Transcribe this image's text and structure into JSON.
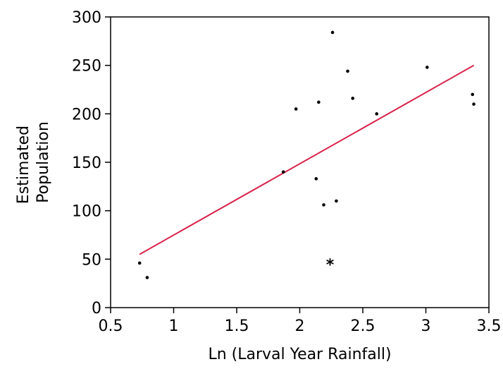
{
  "chart_data": {
    "type": "scatter",
    "title": "",
    "xlabel": "Ln (Larval Year Rainfall)",
    "ylabel_lines": [
      "Estimated",
      "Population"
    ],
    "xlim": [
      0.5,
      3.5
    ],
    "ylim": [
      0,
      300
    ],
    "xticks": [
      0.5,
      1,
      1.5,
      2,
      2.5,
      3,
      3.5
    ],
    "xtick_labels": [
      "0.5",
      "1",
      "1.5",
      "2",
      "2.5",
      "3",
      "3.5"
    ],
    "yticks": [
      0,
      50,
      100,
      150,
      200,
      250,
      300
    ],
    "ytick_labels": [
      "0",
      "50",
      "100",
      "150",
      "200",
      "250",
      "300"
    ],
    "grid": false,
    "series": [
      {
        "points": [
          {
            "x": 0.73,
            "y": 46
          },
          {
            "x": 0.79,
            "y": 31
          },
          {
            "x": 1.87,
            "y": 140
          },
          {
            "x": 1.97,
            "y": 205
          },
          {
            "x": 2.13,
            "y": 133
          },
          {
            "x": 2.15,
            "y": 212
          },
          {
            "x": 2.19,
            "y": 106
          },
          {
            "x": 2.26,
            "y": 284
          },
          {
            "x": 2.29,
            "y": 110
          },
          {
            "x": 2.38,
            "y": 244
          },
          {
            "x": 2.42,
            "y": 216
          },
          {
            "x": 2.61,
            "y": 200
          },
          {
            "x": 3.01,
            "y": 248
          },
          {
            "x": 3.37,
            "y": 220
          },
          {
            "x": 3.38,
            "y": 210
          }
        ],
        "color": "#000000"
      }
    ],
    "marked_point": {
      "x": 2.24,
      "y": 47,
      "label": "*"
    },
    "fit_line": {
      "x1": 0.73,
      "y1": 55,
      "x2": 3.38,
      "y2": 250,
      "color": "#d9234a"
    }
  }
}
